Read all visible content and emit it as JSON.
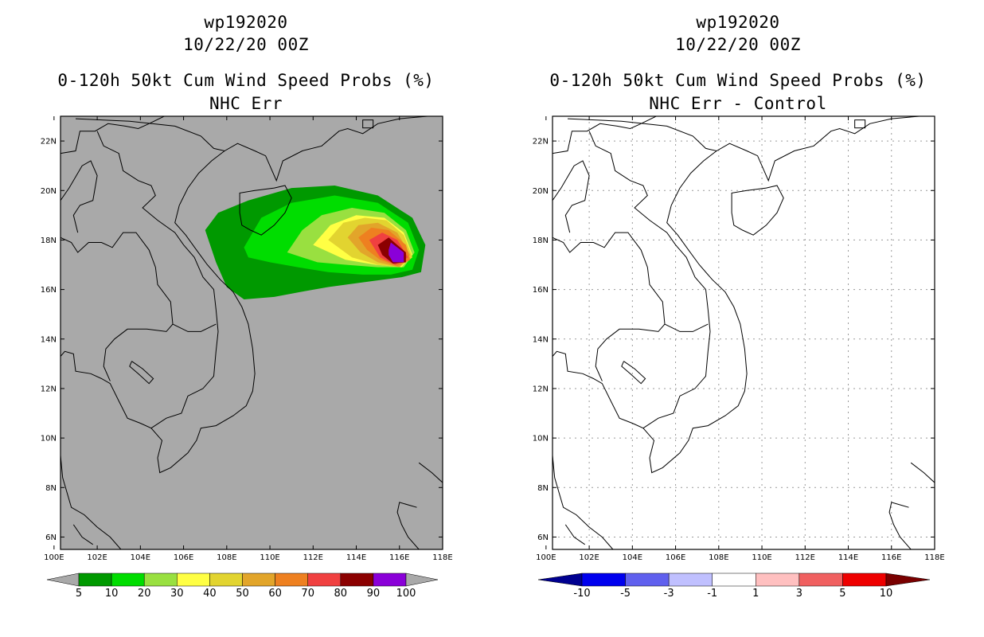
{
  "panels": [
    {
      "storm_id": "wp192020",
      "datetime": "10/22/20 00Z",
      "product": "0-120h 50kt Cum Wind Speed Probs (%)",
      "subtitle": "NHC Err",
      "colorbar": {
        "colors": [
          "#009900",
          "#00dd00",
          "#99e040",
          "#ffff44",
          "#e2d430",
          "#e2a52a",
          "#ee8020",
          "#f04040",
          "#8b0000",
          "#8a00d8"
        ],
        "labels": [
          "5",
          "10",
          "20",
          "30",
          "40",
          "50",
          "60",
          "70",
          "80",
          "90",
          "100"
        ],
        "under_color": "#a9a9a9",
        "over_color": "#a9a9a9"
      }
    },
    {
      "storm_id": "wp192020",
      "datetime": "10/22/20 00Z",
      "product": "0-120h 50kt Cum Wind Speed Probs (%)",
      "subtitle": "NHC Err - Control",
      "colorbar": {
        "colors": [
          "#0000ee",
          "#6060ee",
          "#c0c0ff",
          "#ffffff",
          "#ffc0c0",
          "#f06060",
          "#ee0000"
        ],
        "labels": [
          "-10",
          "-5",
          "-3",
          "-1",
          "1",
          "3",
          "5",
          "10"
        ],
        "under_color": "#000090",
        "over_color": "#7a0000"
      }
    }
  ],
  "map": {
    "lat_labels": [
      "22N",
      "20N",
      "18N",
      "16N",
      "14N",
      "12N",
      "10N",
      "8N",
      "6N"
    ],
    "lon_labels": [
      "100E",
      "102E",
      "104E",
      "106E",
      "108E",
      "110E",
      "112E",
      "114E",
      "116E",
      "118E"
    ],
    "lat_values": [
      22,
      20,
      18,
      16,
      14,
      12,
      10,
      8,
      6
    ],
    "lon_values": [
      100,
      102,
      104,
      106,
      108,
      110,
      112,
      114,
      116,
      118
    ],
    "lon_range": [
      100.3,
      118.0
    ],
    "lat_range": [
      5.5,
      23.0
    ],
    "left_background": "#a9a9a9",
    "right_background": "#ffffff"
  }
}
